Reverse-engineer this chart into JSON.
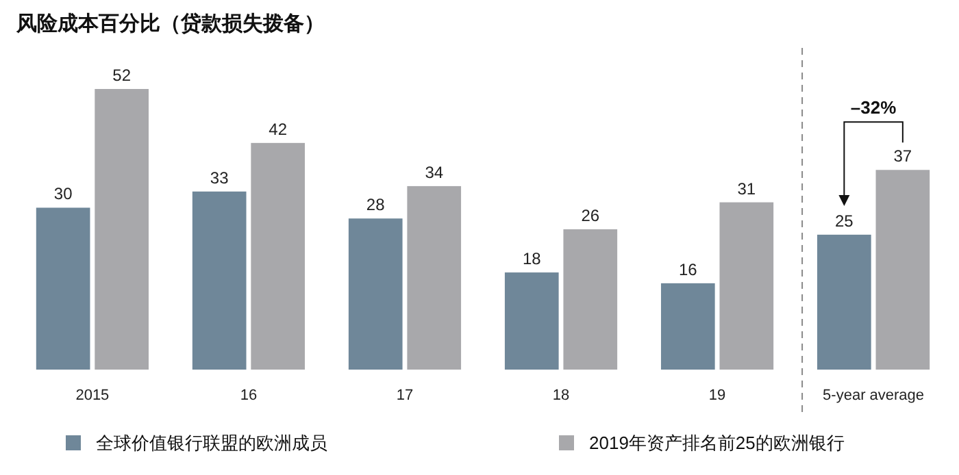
{
  "chart_data": {
    "type": "bar",
    "title": "风险成本百分比（贷款损失拨备）",
    "categories": [
      "2015",
      "16",
      "17",
      "18",
      "19",
      "5-year average"
    ],
    "series": [
      {
        "name": "全球价值银行联盟的欧洲成员",
        "color": "#6f8799",
        "values": [
          30,
          33,
          28,
          18,
          16,
          25
        ]
      },
      {
        "name": "2019年资产排名前25的欧洲银行",
        "color": "#a8a8ab",
        "values": [
          52,
          42,
          34,
          26,
          31,
          37
        ]
      }
    ],
    "data_labels": true,
    "legend": "bottom",
    "annotations": [
      "–32%"
    ]
  }
}
